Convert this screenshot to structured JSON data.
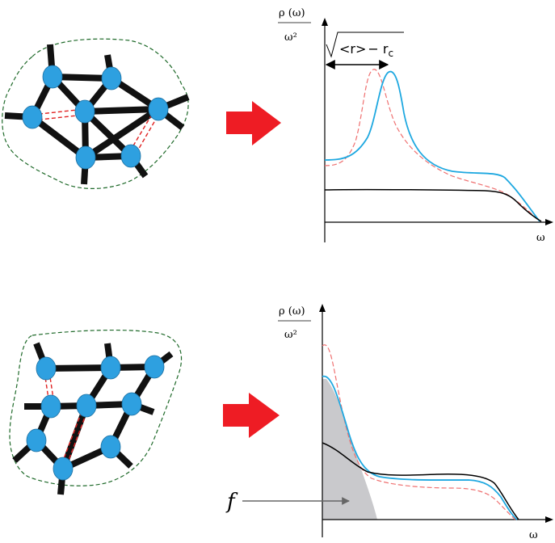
{
  "top_panel": {
    "y_label_num": "ρ (ω)",
    "y_label_den": "ω²",
    "x_label": "ω",
    "gap_label_lt": "<",
    "gap_label_r1": "r",
    "gap_label_gt": ">",
    "gap_label_minus": "− r",
    "gap_label_sub": "c"
  },
  "bottom_panel": {
    "y_label_num": "ρ (ω)",
    "y_label_den": "ω²",
    "x_label": "ω",
    "shade_label": "f"
  },
  "colors": {
    "node": "#2ea0e0",
    "bond": "#111111",
    "missing_bond": "#e02020",
    "boundary": "#1f6a2a",
    "arrow": "#ee1c24",
    "curve_blue": "#1ea8e0",
    "curve_red": "#ef7070",
    "curve_black": "#000000",
    "shade": "#c9c9cc"
  },
  "icons": {
    "arrow": "red-right-arrow-icon"
  }
}
